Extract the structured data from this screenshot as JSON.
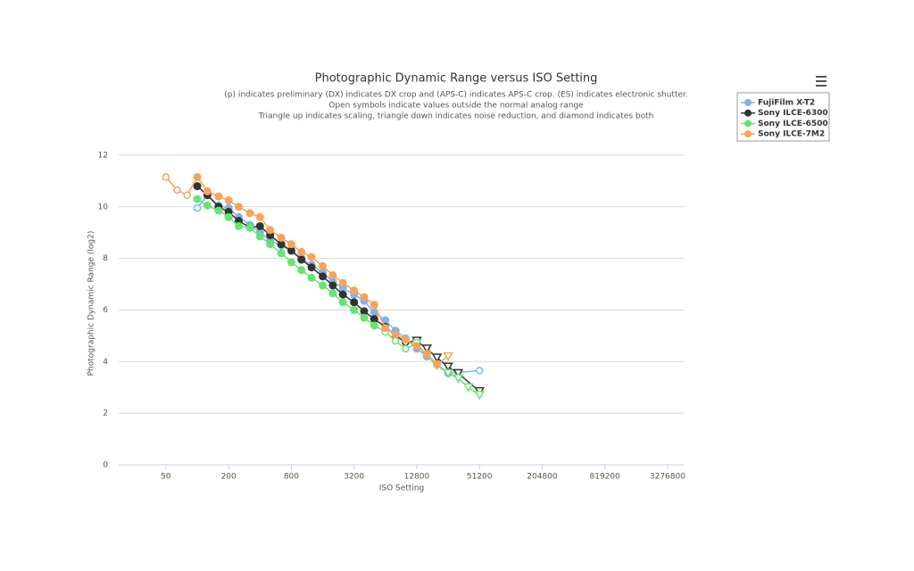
{
  "chart_data": {
    "type": "line",
    "title": "Photographic Dynamic Range versus ISO Setting",
    "subtitle": [
      "(p) indicates preliminary (DX) indicates DX crop and (APS-C) indicates APS-C crop. (ES) indicates electronic shutter.",
      "Open symbols indicate values outside the normal analog range",
      "Triangle up indicates scaling, triangle down indicates noise reduction, and diamond indicates both"
    ],
    "x_label": "ISO Setting",
    "y_label": "Photographic Dynamic Range (log2)",
    "x_scale": "log",
    "xlim": [
      17.6,
      4680000
    ],
    "xticks": [
      50,
      200,
      800,
      3200,
      12800,
      51200,
      204800,
      819200,
      3276800
    ],
    "ylim": [
      0,
      13
    ],
    "yticks": [
      0,
      2,
      4,
      6,
      8,
      10,
      12
    ],
    "grid": true,
    "legend": "top-right",
    "series": [
      {
        "name": "FujiFilm X-T2",
        "color": "#7cb5ec",
        "x": [
          100,
          125,
          160,
          200,
          250,
          320,
          400,
          500,
          640,
          800,
          1000,
          1250,
          1600,
          2000,
          2500,
          3200,
          4000,
          5000,
          6400,
          8000,
          10000,
          12800,
          16000,
          20000,
          25600,
          51200
        ],
        "values": [
          9.95,
          10.45,
          10.05,
          9.95,
          9.6,
          9.3,
          9.0,
          8.7,
          8.5,
          8.3,
          8.0,
          7.75,
          7.45,
          7.1,
          6.85,
          6.6,
          6.35,
          5.9,
          5.6,
          5.2,
          4.9,
          4.5,
          4.2,
          3.9,
          3.55,
          3.65
        ],
        "symbols": [
          "open-circle",
          "circle",
          "circle",
          "circle",
          "circle",
          "circle",
          "circle",
          "circle",
          "circle",
          "circle",
          "circle",
          "circle",
          "circle",
          "circle",
          "circle",
          "circle",
          "circle",
          "circle",
          "circle",
          "circle",
          "circle",
          "circle",
          "circle",
          "circle",
          "circle",
          "open-circle"
        ]
      },
      {
        "name": "Sony ILCE-6300",
        "color": "#333333",
        "x": [
          100,
          125,
          160,
          200,
          250,
          320,
          400,
          500,
          640,
          800,
          1000,
          1250,
          1600,
          2000,
          2500,
          3200,
          4000,
          5000,
          6400,
          8000,
          10000,
          12800,
          16000,
          20000,
          25600,
          32000,
          51200
        ],
        "values": [
          10.8,
          10.45,
          10.0,
          9.8,
          9.45,
          9.2,
          9.25,
          8.9,
          8.55,
          8.3,
          7.95,
          7.65,
          7.3,
          6.95,
          6.6,
          6.3,
          5.95,
          5.65,
          5.35,
          5.0,
          4.75,
          4.8,
          4.5,
          4.15,
          3.8,
          3.55,
          2.85
        ],
        "symbols": [
          "circle",
          "circle",
          "circle",
          "circle",
          "circle",
          "circle",
          "circle",
          "circle",
          "circle",
          "circle",
          "circle",
          "circle",
          "circle",
          "circle",
          "circle",
          "circle",
          "circle",
          "circle",
          "open-circle",
          "open-circle",
          "open-circle",
          "open-triangle-down",
          "open-triangle-down",
          "open-triangle-down",
          "open-triangle-down",
          "open-triangle-down",
          "open-triangle-down"
        ]
      },
      {
        "name": "Sony ILCE-6500",
        "color": "#64e572",
        "x": [
          100,
          125,
          160,
          200,
          250,
          320,
          400,
          500,
          640,
          800,
          1000,
          1250,
          1600,
          2000,
          2500,
          3200,
          4000,
          5000,
          6400,
          8000,
          10000,
          12800,
          16000,
          20000,
          25600,
          32000,
          40000,
          51200
        ],
        "values": [
          10.3,
          10.05,
          9.85,
          9.6,
          9.25,
          9.2,
          8.85,
          8.55,
          8.2,
          7.85,
          7.55,
          7.25,
          6.95,
          6.65,
          6.3,
          6.0,
          5.7,
          5.4,
          5.15,
          4.8,
          4.5,
          4.7,
          4.25,
          3.85,
          3.55,
          3.35,
          3.0,
          2.7
        ],
        "symbols": [
          "circle",
          "circle",
          "circle",
          "circle",
          "circle",
          "circle",
          "circle",
          "circle",
          "circle",
          "circle",
          "circle",
          "circle",
          "circle",
          "circle",
          "circle",
          "circle",
          "circle",
          "circle",
          "open-circle",
          "open-circle",
          "open-circle",
          "open-triangle-down",
          "open-triangle-down",
          "open-triangle-down",
          "open-triangle-down",
          "open-triangle-down",
          "open-triangle-down",
          "open-triangle-down"
        ]
      },
      {
        "name": "Sony ILCE-7M2",
        "color": "#f7a35c",
        "x": [
          50,
          64,
          80,
          100,
          125,
          160,
          200,
          250,
          320,
          400,
          500,
          640,
          800,
          1000,
          1250,
          1600,
          2000,
          2500,
          3200,
          4000,
          5000,
          6400,
          8000,
          10000,
          12800,
          16000,
          20000,
          25600
        ],
        "values": [
          11.15,
          10.65,
          10.45,
          11.15,
          10.6,
          10.4,
          10.25,
          10.0,
          9.75,
          9.6,
          9.1,
          8.8,
          8.55,
          8.25,
          8.05,
          7.7,
          7.35,
          7.05,
          6.75,
          6.5,
          6.2,
          5.3,
          5.05,
          4.85,
          4.6,
          4.3,
          3.9,
          4.2
        ],
        "symbols": [
          "open-circle",
          "open-circle",
          "open-circle",
          "circle",
          "circle",
          "circle",
          "circle",
          "circle",
          "circle",
          "circle",
          "circle",
          "circle",
          "circle",
          "circle",
          "circle",
          "circle",
          "circle",
          "circle",
          "circle",
          "circle",
          "circle",
          "circle",
          "circle",
          "circle",
          "circle",
          "circle",
          "circle",
          "open-triangle-down"
        ]
      }
    ]
  }
}
